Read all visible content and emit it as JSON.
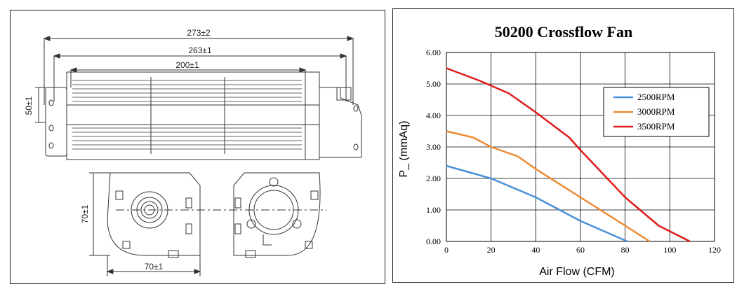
{
  "drawing": {
    "dim_overall": "273±2",
    "dim_body": "263±1",
    "dim_impeller": "200±1",
    "dim_height": "50±1",
    "dim_end_height": "70±1",
    "dim_end_width": "70±1"
  },
  "chart_data": {
    "type": "line",
    "title": "50200 Crossflow Fan",
    "xlabel": "Air Flow (CFM)",
    "ylabel": "P_  (mmAq)",
    "xlim": [
      0,
      120
    ],
    "ylim": [
      0,
      6
    ],
    "xticks": [
      "0",
      "20",
      "40",
      "60",
      "80",
      "100",
      "120"
    ],
    "yticks": [
      "0.00",
      "1.00",
      "2.00",
      "3.00",
      "4.00",
      "5.00",
      "6.00"
    ],
    "grid": true,
    "legend_position": "right",
    "series": [
      {
        "name": "2500RPM",
        "color": "#4a90d9",
        "x": [
          0,
          20,
          40,
          60,
          81
        ],
        "y": [
          2.4,
          2.0,
          1.4,
          0.65,
          0.0
        ]
      },
      {
        "name": "3000RPM",
        "color": "#ee8a33",
        "x": [
          0,
          12,
          20,
          32,
          40,
          60,
          80,
          91
        ],
        "y": [
          3.5,
          3.3,
          3.0,
          2.7,
          2.3,
          1.4,
          0.5,
          0.0
        ]
      },
      {
        "name": "3500RPM",
        "color": "#e01b1b",
        "x": [
          0,
          15,
          28,
          40,
          55,
          60,
          80,
          95,
          109
        ],
        "y": [
          5.5,
          5.1,
          4.7,
          4.1,
          3.3,
          2.9,
          1.4,
          0.5,
          0.0
        ]
      }
    ]
  }
}
